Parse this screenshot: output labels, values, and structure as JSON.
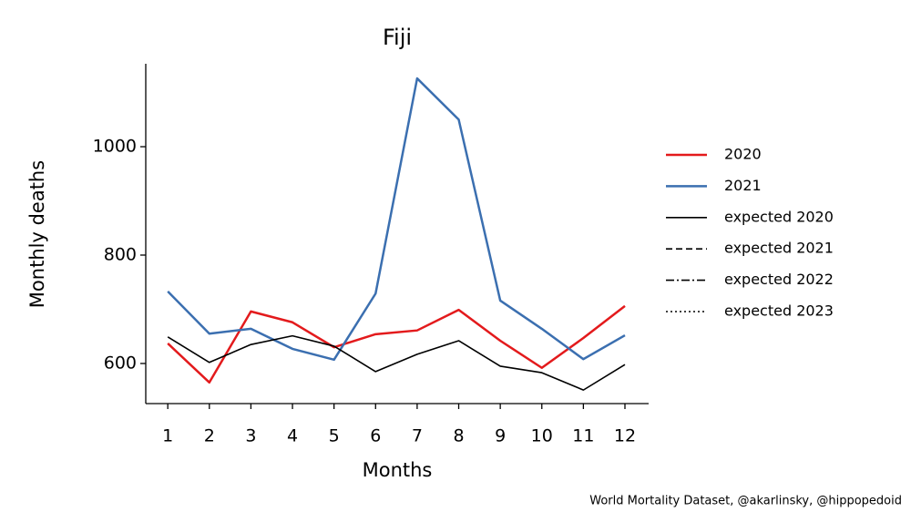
{
  "chart_data": {
    "type": "line",
    "title": "Fiji",
    "xlabel": "Months",
    "ylabel": "Monthly deaths",
    "source": "World Mortality Dataset, @akarlinsky, @hippopedoid",
    "x": [
      1,
      2,
      3,
      4,
      5,
      6,
      7,
      8,
      9,
      10,
      11,
      12
    ],
    "series": [
      {
        "name": "2020",
        "color": "#e31a1c",
        "linestyle": "solid",
        "width": 2.5,
        "values": [
          637,
          565,
          696,
          676,
          630,
          654,
          661,
          699,
          642,
          592,
          647,
          706
        ]
      },
      {
        "name": "2021",
        "color": "#3b6fb0",
        "linestyle": "solid",
        "width": 2.5,
        "values": [
          733,
          655,
          664,
          627,
          607,
          729,
          1126,
          1050,
          716,
          664,
          608,
          652
        ]
      },
      {
        "name": "expected 2020",
        "color": "#000000",
        "linestyle": "solid",
        "width": 1.6,
        "values": [
          649,
          602,
          635,
          651,
          632,
          585,
          617,
          642,
          595,
          583,
          551,
          598
        ]
      },
      {
        "name": "expected 2021",
        "color": "#000000",
        "linestyle": "dashed",
        "width": 1.6,
        "values": [
          null,
          null,
          null,
          null,
          null,
          null,
          null,
          null,
          null,
          null,
          null,
          null
        ]
      },
      {
        "name": "expected 2022",
        "color": "#000000",
        "linestyle": "dashdot",
        "width": 1.6,
        "values": [
          null,
          null,
          null,
          null,
          null,
          null,
          null,
          null,
          null,
          null,
          null,
          null
        ]
      },
      {
        "name": "expected 2023",
        "color": "#000000",
        "linestyle": "dotted",
        "width": 1.6,
        "values": [
          null,
          null,
          null,
          null,
          null,
          null,
          null,
          null,
          null,
          null,
          null,
          null
        ]
      }
    ],
    "xlim": [
      0.47,
      12.57
    ],
    "xticks": [
      1,
      2,
      3,
      4,
      5,
      6,
      7,
      8,
      9,
      10,
      11,
      12
    ],
    "ylim": [
      526,
      1153
    ],
    "yticks": [
      600,
      800,
      1000
    ],
    "grid": false,
    "legend": "outside right"
  }
}
